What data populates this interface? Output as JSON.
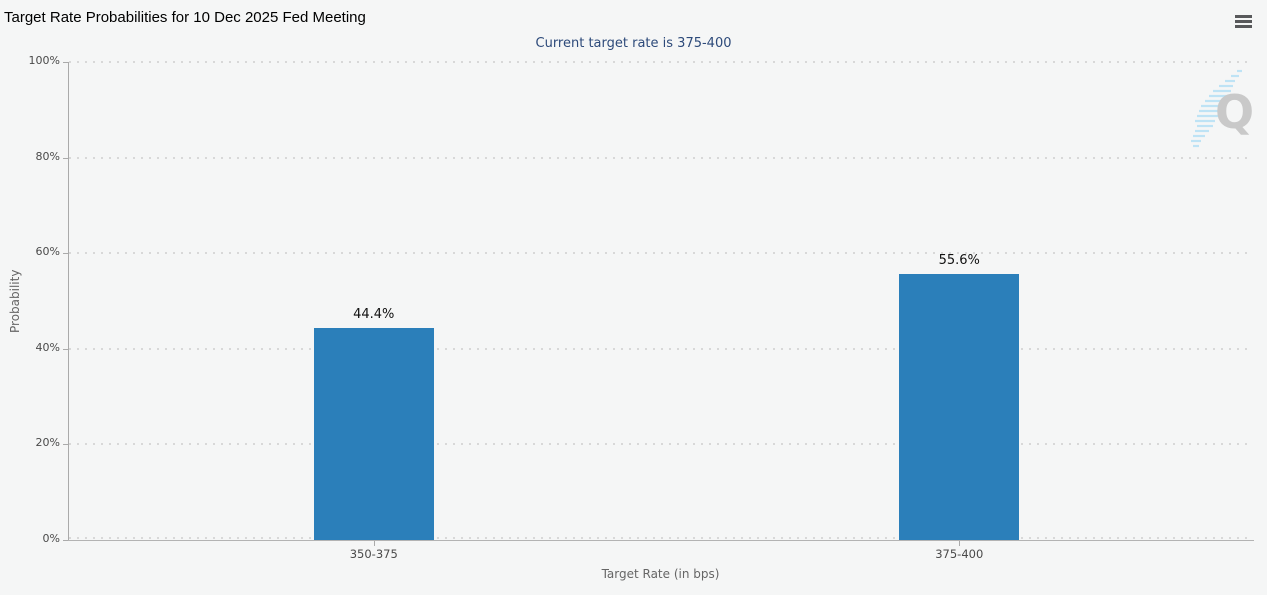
{
  "header": {
    "menu_icon": "hamburger-icon"
  },
  "watermark": {
    "letter": "Q"
  },
  "chart_data": {
    "type": "bar",
    "title": "Target Rate Probabilities for 10 Dec 2025 Fed Meeting",
    "subtitle": "Current target rate is 375-400",
    "categories": [
      "350-375",
      "375-400"
    ],
    "values": [
      44.4,
      55.6
    ],
    "data_labels": [
      "44.4%",
      "55.6%"
    ],
    "xlabel": "Target Rate (in bps)",
    "ylabel": "Probability",
    "ylim": [
      0,
      100
    ],
    "yticks": [
      0,
      20,
      40,
      60,
      80,
      100
    ],
    "ytick_labels": [
      "0%",
      "20%",
      "40%",
      "60%",
      "80%",
      "100%"
    ],
    "bar_color": "#2b7fba",
    "grid": "horizontal-dotted",
    "legend": "none"
  },
  "colors": {
    "background": "#f5f6f6",
    "bar": "#2b7fba",
    "subtitle_text": "#2d4a7a",
    "axis_line": "#aaaaaa",
    "grid_dot": "#d8d8d8",
    "tick_text": "#4a4a4a",
    "axis_title_text": "#666666",
    "title_text": "#000000",
    "menu_icon": "#58595b",
    "watermark_q": "#c9c9c9",
    "watermark_stripe": "#b5e0f5"
  }
}
